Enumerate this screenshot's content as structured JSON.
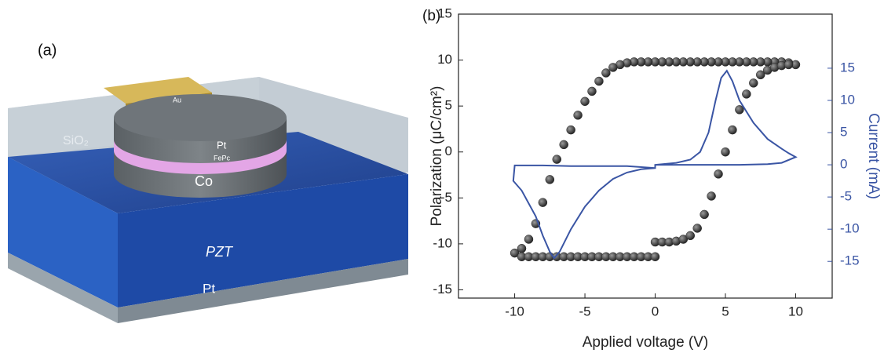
{
  "panel_a": {
    "label": "(a)",
    "layers": {
      "oxide": "SiO₂",
      "electrode": "Au",
      "top": "Pt",
      "molecule": "FePc",
      "magnet": "Co",
      "ferroelectric": "PZT",
      "bottom": "Pt"
    }
  },
  "chart_data": {
    "type": "scatter-line",
    "panel_label": "(b)",
    "x_label": "Applied voltage (V)",
    "y_label": "Polarization (μC/cm²)",
    "y2_label": "Current (mA)",
    "xlim": [
      -14,
      12.6
    ],
    "xticks": [
      -10,
      -5,
      0,
      5,
      10
    ],
    "ylim": [
      -15.9,
      15
    ],
    "yticks": [
      -15,
      -10,
      -5,
      0,
      5,
      10,
      15
    ],
    "y2lim": [
      -20.7,
      23.4
    ],
    "y2ticks": [
      -15,
      -10,
      -5,
      0,
      5,
      10,
      15
    ],
    "series": [
      {
        "name": "Polarization",
        "color": "#2b2b2b",
        "style": "points",
        "x": [
          10,
          9.5,
          9,
          8.5,
          8,
          7.5,
          7,
          6.5,
          6,
          5.5,
          5,
          4.5,
          4,
          3.5,
          3,
          2.5,
          2,
          1.5,
          1,
          0.5,
          0,
          -0.5,
          -1,
          -1.5,
          -2,
          -2.5,
          -3,
          -3.5,
          -4,
          -4.5,
          -5,
          -5.5,
          -6,
          -6.5,
          -7,
          -7.5,
          -8,
          -8.5,
          -9,
          -9.5,
          -10,
          -9.5,
          -9,
          -8.5,
          -8,
          -7.5,
          -7,
          -6.5,
          -6,
          -5.5,
          -5,
          -4.5,
          -4,
          -3.5,
          -3,
          -2.5,
          -2,
          -1.5,
          -1,
          -0.5,
          0,
          0,
          0.5,
          1,
          1.5,
          2,
          2.5,
          3,
          3.5,
          4,
          4.5,
          5,
          5.5,
          6,
          6.5,
          7,
          7.5,
          8,
          8.5,
          9,
          9.5
        ],
        "values": [
          9.5,
          9.7,
          9.8,
          9.8,
          9.8,
          9.8,
          9.8,
          9.8,
          9.8,
          9.8,
          9.8,
          9.8,
          9.8,
          9.8,
          9.8,
          9.8,
          9.8,
          9.8,
          9.8,
          9.8,
          9.8,
          9.8,
          9.8,
          9.8,
          9.7,
          9.5,
          9.2,
          8.6,
          7.7,
          6.6,
          5.5,
          4.0,
          2.4,
          0.8,
          -0.8,
          -3.0,
          -5.5,
          -7.8,
          -9.5,
          -10.5,
          -11.0,
          -11.4,
          -11.4,
          -11.4,
          -11.4,
          -11.4,
          -11.4,
          -11.4,
          -11.4,
          -11.4,
          -11.4,
          -11.4,
          -11.4,
          -11.4,
          -11.4,
          -11.4,
          -11.4,
          -11.4,
          -11.4,
          -11.4,
          -11.4,
          -9.8,
          -9.8,
          -9.8,
          -9.7,
          -9.5,
          -9.1,
          -8.3,
          -6.8,
          -4.8,
          -2.4,
          0,
          2.4,
          4.6,
          6.3,
          7.5,
          8.4,
          8.9,
          9.2,
          9.4,
          9.5
        ]
      },
      {
        "name": "Current",
        "color": "#3a55a4",
        "style": "line",
        "axis": "y2",
        "x": [
          0,
          2,
          4,
          6,
          8,
          9,
          10,
          9.5,
          9,
          8,
          7,
          6,
          5.5,
          5.1,
          4.7,
          4.3,
          3.8,
          3.2,
          2.5,
          1.5,
          0,
          0,
          -2,
          -4,
          -6,
          -8,
          -10,
          -10.1,
          -9.5,
          -8.5,
          -8,
          -7.5,
          -7.2,
          -6.8,
          -6,
          -5,
          -4,
          -3,
          -2,
          -1,
          0
        ],
        "values": [
          0,
          0,
          0,
          0,
          0.1,
          0.3,
          1.2,
          1.8,
          2.5,
          4.0,
          6.5,
          10,
          13,
          14.6,
          13.5,
          10,
          5,
          2,
          0.8,
          0.3,
          0,
          -0.5,
          -0.2,
          -0.2,
          -0.2,
          -0.1,
          -0.1,
          -2.5,
          -4,
          -8,
          -11,
          -13.5,
          -14.5,
          -13.5,
          -10,
          -6.5,
          -4,
          -2.2,
          -1.2,
          -0.7,
          -0.5
        ]
      }
    ]
  }
}
